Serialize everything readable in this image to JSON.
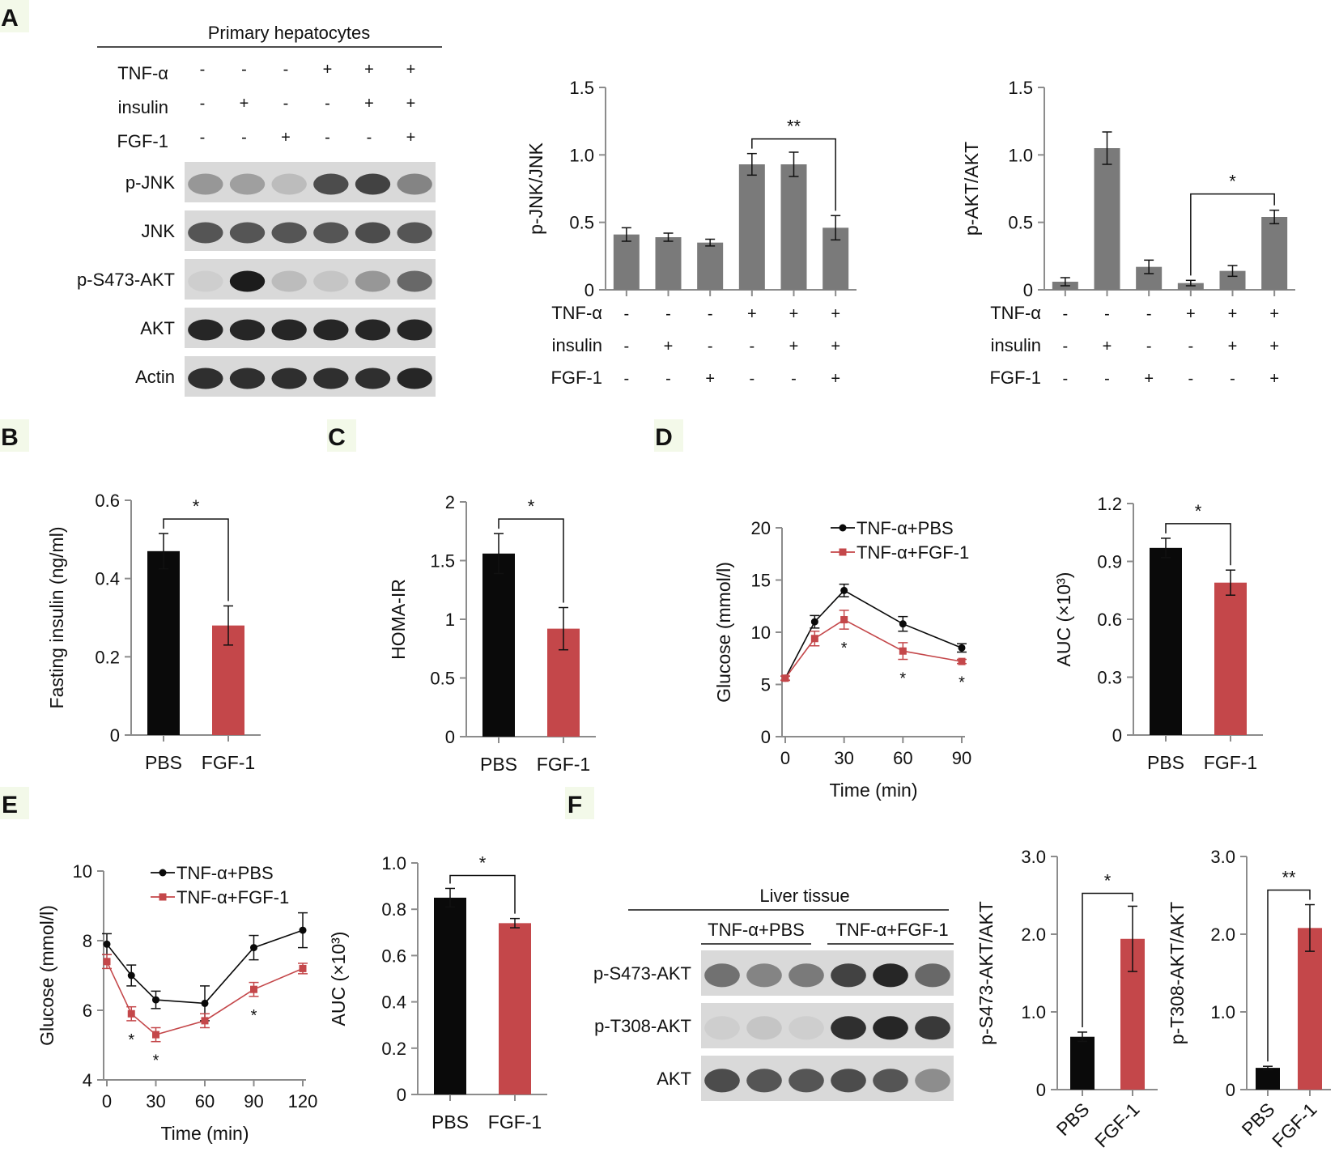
{
  "colors": {
    "black": "#0a0a0a",
    "red": "#c4474a",
    "gray": "#7a7a7a",
    "axis": "#8c8c8c",
    "blot_bg": "#d9d9d9",
    "band": "#1c1c1c",
    "label_bg": "#f3f9e9"
  },
  "panel_labels": [
    "A",
    "B",
    "C",
    "D",
    "E",
    "F"
  ],
  "panelA": {
    "header": "Primary hepatocytes",
    "treatments": [
      {
        "name": "TNF-α",
        "signs": [
          "-",
          "-",
          "-",
          "+",
          "+",
          "+"
        ]
      },
      {
        "name": "insulin",
        "signs": [
          "-",
          "+",
          "-",
          "-",
          "+",
          "+"
        ]
      },
      {
        "name": "FGF-1",
        "signs": [
          "-",
          "-",
          "+",
          "-",
          "-",
          "+"
        ]
      }
    ],
    "blots": [
      {
        "name": "p-JNK",
        "intensity": [
          0.35,
          0.3,
          0.15,
          0.75,
          0.8,
          0.45
        ]
      },
      {
        "name": "JNK",
        "intensity": [
          0.7,
          0.7,
          0.7,
          0.7,
          0.75,
          0.7
        ]
      },
      {
        "name": "p-S473-AKT",
        "intensity": [
          0.05,
          1.0,
          0.15,
          0.1,
          0.35,
          0.6
        ]
      },
      {
        "name": "AKT",
        "intensity": [
          0.95,
          0.95,
          0.95,
          0.95,
          0.95,
          0.95
        ]
      },
      {
        "name": "Actin",
        "intensity": [
          0.9,
          0.9,
          0.9,
          0.9,
          0.9,
          0.95
        ]
      }
    ]
  },
  "chart_data": [
    {
      "id": "A-jnk",
      "type": "bar",
      "title": "",
      "xlabel": "",
      "ylabel": "p-JNK/JNK",
      "ylim": [
        0,
        1.5
      ],
      "yticks": [
        "0",
        "0.5",
        "1.0",
        "1.5"
      ],
      "values": [
        0.41,
        0.39,
        0.35,
        0.93,
        0.93,
        0.46
      ],
      "errors": [
        0.05,
        0.03,
        0.025,
        0.08,
        0.09,
        0.09
      ],
      "color": "#7a7a7a",
      "treatment_rows": [
        {
          "name": "TNF-α",
          "signs": [
            "-",
            "-",
            "-",
            "+",
            "+",
            "+"
          ]
        },
        {
          "name": "insulin",
          "signs": [
            "-",
            "+",
            "-",
            "-",
            "+",
            "+"
          ]
        },
        {
          "name": "FGF-1",
          "signs": [
            "-",
            "-",
            "+",
            "-",
            "-",
            "+"
          ]
        }
      ],
      "significance": [
        {
          "from": 3,
          "to": 5,
          "text": "**"
        }
      ]
    },
    {
      "id": "A-akt",
      "type": "bar",
      "title": "",
      "xlabel": "",
      "ylabel": "p-AKT/AKT",
      "ylim": [
        0,
        1.5
      ],
      "yticks": [
        "0",
        "0.5",
        "1.0",
        "1.5"
      ],
      "values": [
        0.06,
        1.05,
        0.17,
        0.05,
        0.14,
        0.54
      ],
      "errors": [
        0.03,
        0.12,
        0.05,
        0.02,
        0.04,
        0.05
      ],
      "color": "#7a7a7a",
      "treatment_rows": [
        {
          "name": "TNF-α",
          "signs": [
            "-",
            "-",
            "-",
            "+",
            "+",
            "+"
          ]
        },
        {
          "name": "insulin",
          "signs": [
            "-",
            "+",
            "-",
            "-",
            "+",
            "+"
          ]
        },
        {
          "name": "FGF-1",
          "signs": [
            "-",
            "-",
            "+",
            "-",
            "-",
            "+"
          ]
        }
      ],
      "significance": [
        {
          "from": 3,
          "to": 5,
          "text": "*"
        }
      ]
    },
    {
      "id": "B",
      "type": "bar",
      "ylabel": "Fasting insulin (ng/ml)",
      "categories": [
        "PBS",
        "FGF-1"
      ],
      "values": [
        0.47,
        0.28
      ],
      "errors": [
        0.045,
        0.05
      ],
      "ylim": [
        0,
        0.6
      ],
      "yticks": [
        "0",
        "0.2",
        "0.4",
        "0.6"
      ],
      "colors": [
        "#0a0a0a",
        "#c4474a"
      ],
      "significance": [
        {
          "from": 0,
          "to": 1,
          "text": "*"
        }
      ]
    },
    {
      "id": "C",
      "type": "bar",
      "ylabel": "HOMA-IR",
      "categories": [
        "PBS",
        "FGF-1"
      ],
      "values": [
        1.56,
        0.92
      ],
      "errors": [
        0.17,
        0.18
      ],
      "ylim": [
        0,
        2
      ],
      "yticks": [
        "0",
        "0.5",
        "1",
        "1.5",
        "2"
      ],
      "colors": [
        "#0a0a0a",
        "#c4474a"
      ],
      "significance": [
        {
          "from": 0,
          "to": 1,
          "text": "*"
        }
      ]
    },
    {
      "id": "D-curve",
      "type": "line",
      "xlabel": "Time (min)",
      "ylabel": "Glucose (mmol/l)",
      "x": [
        0,
        15,
        30,
        60,
        90
      ],
      "xlim": [
        0,
        90
      ],
      "xticks": [
        "0",
        "30",
        "60",
        "90"
      ],
      "ylim": [
        0,
        20
      ],
      "yticks": [
        "0",
        "5",
        "10",
        "15",
        "20"
      ],
      "series": [
        {
          "name": "TNF-α+PBS",
          "color": "#0a0a0a",
          "marker": "circle",
          "values": [
            5.6,
            11.0,
            14.0,
            10.8,
            8.5
          ],
          "errors": [
            0.2,
            0.6,
            0.6,
            0.7,
            0.4
          ]
        },
        {
          "name": "TNF-α+FGF-1",
          "color": "#c4474a",
          "marker": "square",
          "values": [
            5.6,
            9.4,
            11.2,
            8.2,
            7.2
          ],
          "errors": [
            0.2,
            0.7,
            0.9,
            0.8,
            0.2
          ]
        }
      ],
      "stars": [
        {
          "x": 30,
          "text": "*"
        },
        {
          "x": 60,
          "text": "*"
        },
        {
          "x": 90,
          "text": "*"
        }
      ]
    },
    {
      "id": "D-auc",
      "type": "bar",
      "ylabel": "AUC (×10³)",
      "categories": [
        "PBS",
        "FGF-1"
      ],
      "values": [
        0.97,
        0.79
      ],
      "errors": [
        0.05,
        0.065
      ],
      "ylim": [
        0,
        1.2
      ],
      "yticks": [
        "0",
        "0.3",
        "0.6",
        "0.9",
        "1.2"
      ],
      "colors": [
        "#0a0a0a",
        "#c4474a"
      ],
      "significance": [
        {
          "from": 0,
          "to": 1,
          "text": "*"
        }
      ]
    },
    {
      "id": "E-curve",
      "type": "line",
      "xlabel": "Time (min)",
      "ylabel": "Glucose (mmol/l)",
      "x": [
        0,
        15,
        30,
        60,
        90,
        120
      ],
      "xlim": [
        0,
        120
      ],
      "xticks": [
        "0",
        "30",
        "60",
        "90",
        "120"
      ],
      "ylim": [
        4,
        10
      ],
      "yticks": [
        "4",
        "6",
        "8",
        "10"
      ],
      "series": [
        {
          "name": "TNF-α+PBS",
          "color": "#0a0a0a",
          "marker": "circle",
          "values": [
            7.9,
            7.0,
            6.3,
            6.2,
            7.8,
            8.3
          ],
          "errors": [
            0.3,
            0.3,
            0.25,
            0.5,
            0.35,
            0.5
          ]
        },
        {
          "name": "TNF-α+FGF-1",
          "color": "#c4474a",
          "marker": "square",
          "values": [
            7.4,
            5.9,
            5.3,
            5.7,
            6.6,
            7.2
          ],
          "errors": [
            0.2,
            0.2,
            0.2,
            0.2,
            0.2,
            0.15
          ]
        }
      ],
      "stars": [
        {
          "x": 15,
          "text": "*"
        },
        {
          "x": 30,
          "text": "*"
        },
        {
          "x": 90,
          "text": "*"
        }
      ]
    },
    {
      "id": "E-auc",
      "type": "bar",
      "ylabel": "AUC (×10³)",
      "categories": [
        "PBS",
        "FGF-1"
      ],
      "values": [
        0.85,
        0.74
      ],
      "errors": [
        0.04,
        0.02
      ],
      "ylim": [
        0,
        1.0
      ],
      "yticks": [
        "0",
        "0.2",
        "0.4",
        "0.6",
        "0.8",
        "1.0"
      ],
      "colors": [
        "#0a0a0a",
        "#c4474a"
      ],
      "significance": [
        {
          "from": 0,
          "to": 1,
          "text": "*"
        }
      ]
    },
    {
      "id": "F-s473",
      "type": "bar",
      "ylabel": "p-S473-AKT/AKT",
      "categories": [
        "PBS",
        "FGF-1"
      ],
      "values": [
        0.68,
        1.94
      ],
      "errors": [
        0.06,
        0.42
      ],
      "ylim": [
        0,
        3.0
      ],
      "yticks": [
        "0",
        "1.0",
        "2.0",
        "3.0"
      ],
      "colors": [
        "#0a0a0a",
        "#c4474a"
      ],
      "significance": [
        {
          "from": 0,
          "to": 1,
          "text": "*"
        }
      ]
    },
    {
      "id": "F-t308",
      "type": "bar",
      "ylabel": "p-T308-AKT/AKT",
      "categories": [
        "PBS",
        "FGF-1"
      ],
      "values": [
        0.28,
        2.08
      ],
      "errors": [
        0.02,
        0.3
      ],
      "ylim": [
        0,
        3.0
      ],
      "yticks": [
        "0",
        "1.0",
        "2.0",
        "3.0"
      ],
      "colors": [
        "#0a0a0a",
        "#c4474a"
      ],
      "significance": [
        {
          "from": 0,
          "to": 1,
          "text": "**"
        }
      ]
    }
  ],
  "panelF": {
    "header": "Liver tissue",
    "groups": [
      "TNF-α+PBS",
      "TNF-α+FGF-1"
    ],
    "blots": [
      {
        "name": "p-S473-AKT",
        "intensity": [
          0.55,
          0.45,
          0.5,
          0.8,
          0.95,
          0.6
        ]
      },
      {
        "name": "p-T308-AKT",
        "intensity": [
          0.05,
          0.1,
          0.05,
          0.9,
          0.95,
          0.85
        ]
      },
      {
        "name": "AKT",
        "intensity": [
          0.75,
          0.7,
          0.7,
          0.75,
          0.7,
          0.4
        ]
      }
    ]
  }
}
